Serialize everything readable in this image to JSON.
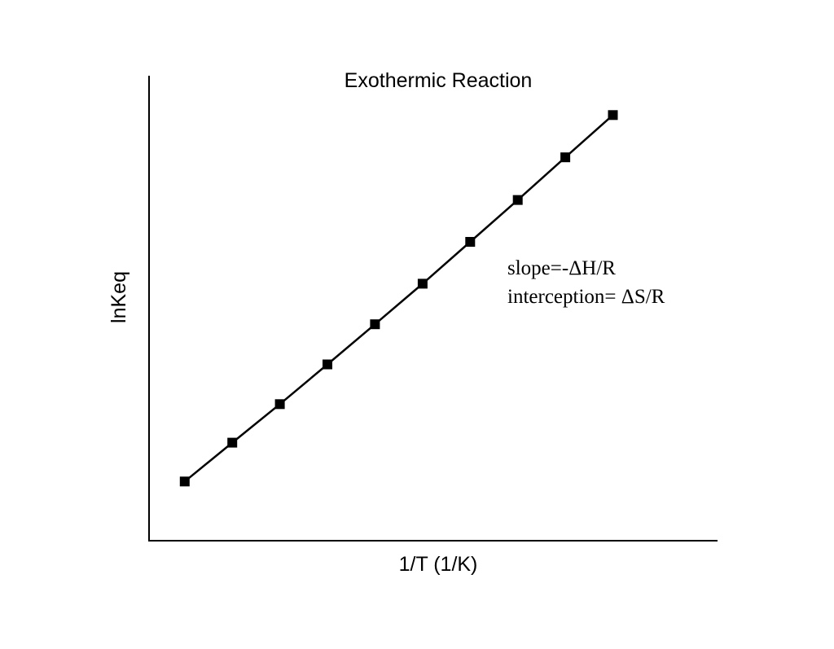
{
  "chart_data": {
    "type": "line",
    "title": "Exothermic Reaction",
    "xlabel": "1/T (1/K)",
    "ylabel": "lnKeq",
    "x": [
      1,
      2,
      3,
      4,
      5,
      6,
      7,
      8,
      9,
      10
    ],
    "series": [
      {
        "values": [
          1.0,
          1.92,
          2.83,
          3.77,
          4.72,
          5.68,
          6.67,
          7.66,
          8.67,
          9.67
        ]
      }
    ],
    "xlim": [
      0.25,
      12.2
    ],
    "ylim": [
      -0.4,
      10.6
    ],
    "grid": false,
    "legend": "none",
    "marker": "square",
    "line_color": "#000000",
    "marker_color": "#000000",
    "annotations": [
      "slope=-ΔH/R",
      "interception= ΔS/R"
    ]
  }
}
